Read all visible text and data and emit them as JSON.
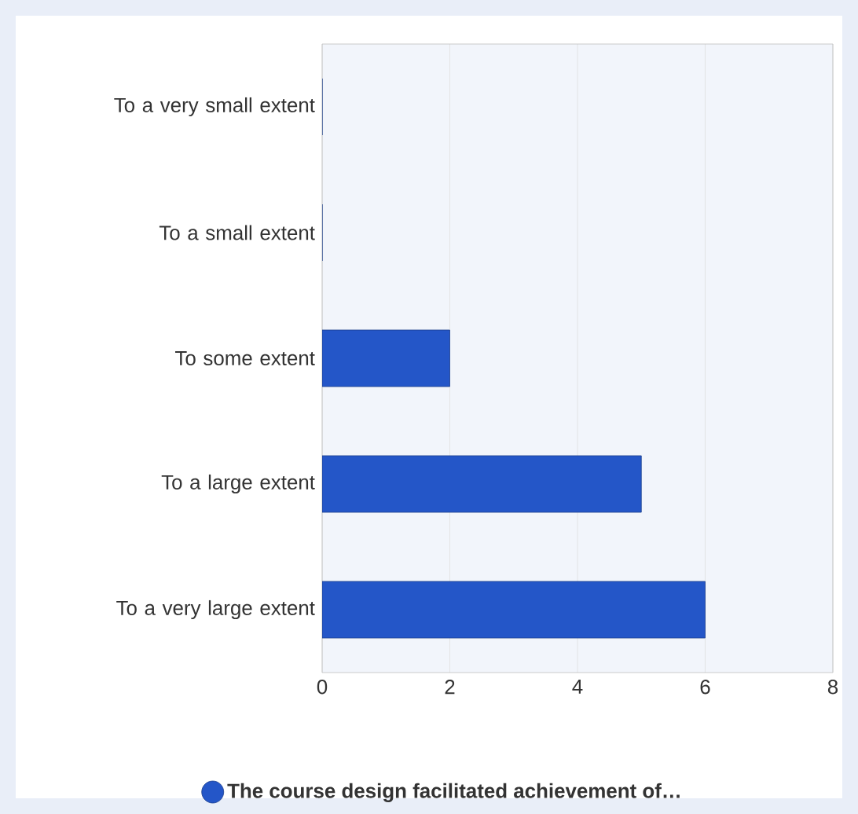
{
  "chart_data": {
    "type": "bar",
    "orientation": "horizontal",
    "categories": [
      "To a very small extent",
      "To a small extent",
      "To some extent",
      "To a large extent",
      "To a very large extent"
    ],
    "series": [
      {
        "name": "The course design facilitated achievement of…",
        "color": "#2456c8",
        "values": [
          0,
          0,
          2,
          5,
          6
        ]
      }
    ],
    "xlim": [
      0,
      8
    ],
    "xticks": [
      0,
      2,
      4,
      6,
      8
    ],
    "grid": "x",
    "legend": "bottom"
  }
}
